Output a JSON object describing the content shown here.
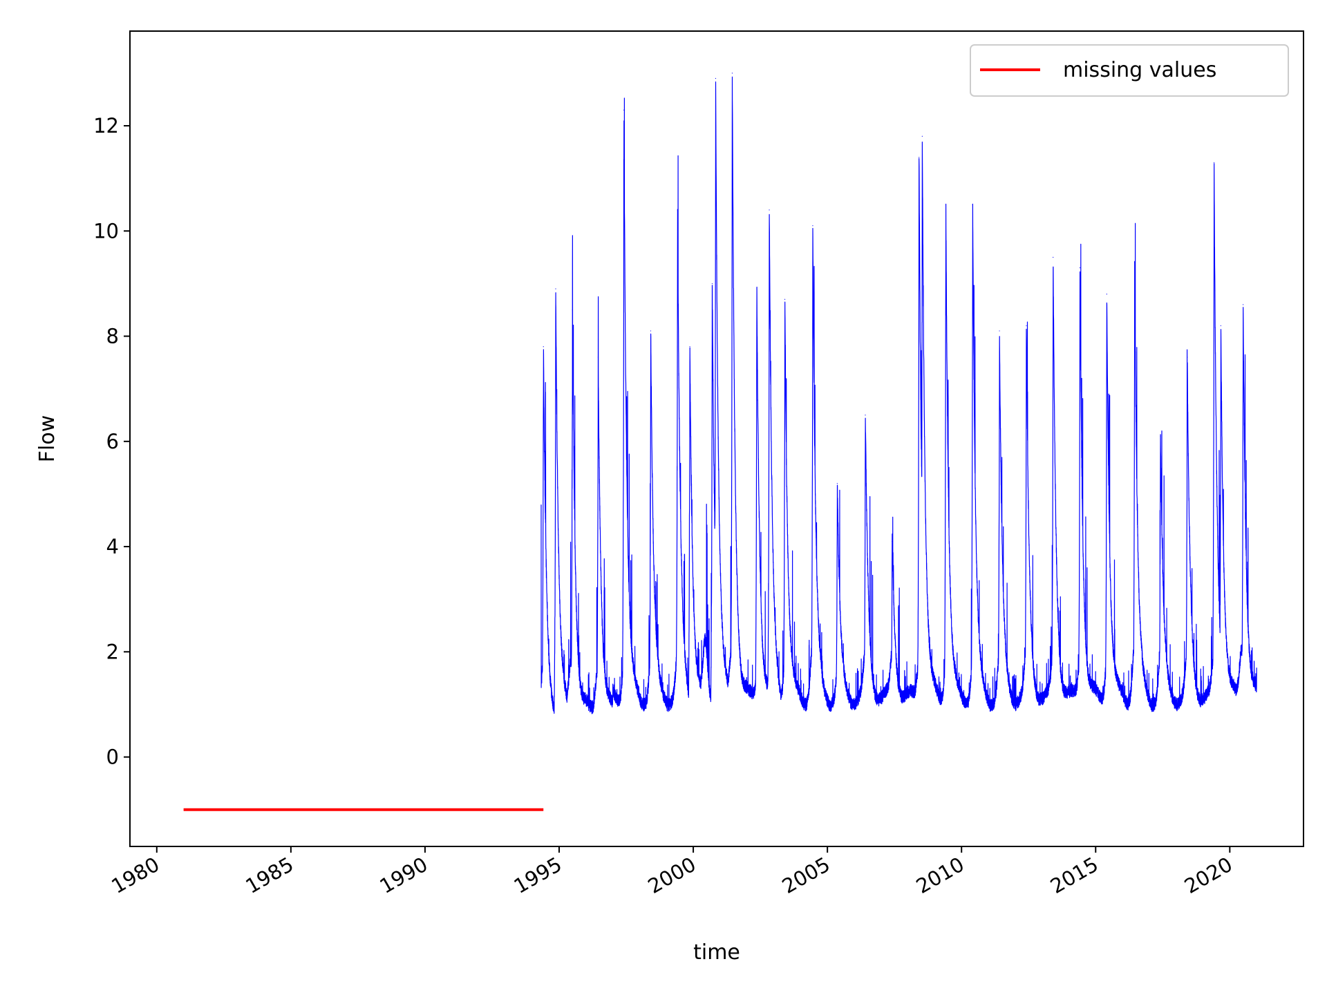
{
  "chart_data": {
    "type": "line",
    "title": "",
    "xlabel": "time",
    "ylabel": "Flow",
    "xlim": [
      "1979-01-01",
      "2022-10-01"
    ],
    "ylim": [
      -1.7,
      13.8
    ],
    "grid": false,
    "legend_placement": "top-right",
    "x_tick_labels": [
      "1980",
      "1985",
      "1990",
      "1995",
      "2000",
      "2005",
      "2010",
      "2015",
      "2020"
    ],
    "y_tick_labels": [
      "0",
      "2",
      "4",
      "6",
      "8",
      "10",
      "12"
    ],
    "series": [
      {
        "name": "",
        "color": "#0000ff",
        "peaks": [
          {
            "x": "1994-06-01",
            "y": 7.8
          },
          {
            "x": "1994-11-15",
            "y": 8.9
          },
          {
            "x": "1995-07-01",
            "y": 8.5
          },
          {
            "x": "1996-06-15",
            "y": 7.6
          },
          {
            "x": "1997-06-01",
            "y": 12.3
          },
          {
            "x": "1998-06-01",
            "y": 8.1
          },
          {
            "x": "1999-06-01",
            "y": 10.4
          },
          {
            "x": "1999-11-15",
            "y": 7.8
          },
          {
            "x": "2000-09-15",
            "y": 9.0
          },
          {
            "x": "2000-11-01",
            "y": 12.9
          },
          {
            "x": "2001-06-15",
            "y": 13.0
          },
          {
            "x": "2002-05-15",
            "y": 8.9
          },
          {
            "x": "2002-11-01",
            "y": 10.4
          },
          {
            "x": "2003-06-01",
            "y": 8.7
          },
          {
            "x": "2004-06-15",
            "y": 10.1
          },
          {
            "x": "2005-05-15",
            "y": 5.2
          },
          {
            "x": "2006-06-01",
            "y": 6.5
          },
          {
            "x": "2007-06-01",
            "y": 4.1
          },
          {
            "x": "2008-06-01",
            "y": 11.4
          },
          {
            "x": "2008-07-15",
            "y": 11.8
          },
          {
            "x": "2009-06-01",
            "y": 10.5
          },
          {
            "x": "2010-06-01",
            "y": 10.5
          },
          {
            "x": "2011-06-01",
            "y": 8.1
          },
          {
            "x": "2012-06-01",
            "y": 8.2
          },
          {
            "x": "2013-06-01",
            "y": 9.5
          },
          {
            "x": "2014-06-01",
            "y": 9.3
          },
          {
            "x": "2015-06-01",
            "y": 8.8
          },
          {
            "x": "2016-06-15",
            "y": 9.4
          },
          {
            "x": "2017-06-01",
            "y": 6.1
          },
          {
            "x": "2018-06-01",
            "y": 7.6
          },
          {
            "x": "2019-06-01",
            "y": 11.3
          },
          {
            "x": "2019-09-01",
            "y": 8.2
          },
          {
            "x": "2020-07-01",
            "y": 8.6
          }
        ],
        "start": {
          "x": "1994-05-01",
          "y": 4.8
        },
        "end": {
          "x": "2021-01-01",
          "y": 1.7
        }
      },
      {
        "name": "missing values",
        "color": "#ff0000",
        "x": [
          "1981-01-01",
          "1994-06-01"
        ],
        "y": [
          -1.0,
          -1.0
        ]
      }
    ]
  }
}
